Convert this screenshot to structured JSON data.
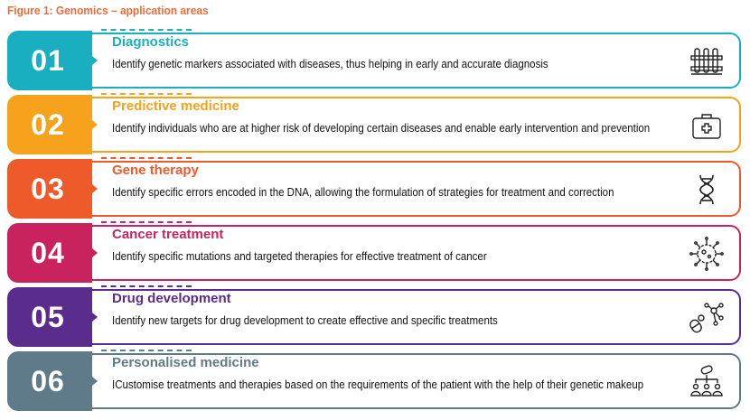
{
  "figure": {
    "title": "Figure 1: Genomics – application areas"
  },
  "rows": [
    {
      "number": "01",
      "title": "Diagnostics",
      "description": "Identify genetic markers associated with diseases, thus helping in early and accurate diagnosis",
      "color": "#1aaec1",
      "icon": "test-tubes-icon"
    },
    {
      "number": "02",
      "title": "Predictive medicine",
      "description": "Identify individuals who are at higher risk of developing certain diseases and enable early intervention and prevention",
      "color": "#f6a21c",
      "icon": "medical-kit-icon"
    },
    {
      "number": "03",
      "title": "Gene therapy",
      "description": "Identify specific errors encoded in the DNA, allowing the formulation of strategies for treatment and correction",
      "color": "#ee5a2a",
      "icon": "dna-icon"
    },
    {
      "number": "04",
      "title": "Cancer treatment",
      "description": "Identify specific mutations and targeted therapies for effective treatment of cancer",
      "color": "#c8235e",
      "icon": "cancer-cell-icon"
    },
    {
      "number": "05",
      "title": "Drug development",
      "description": "Identify new targets for drug development to create effective and specific treatments",
      "color": "#5a2c8c",
      "icon": "molecule-pill-icon"
    },
    {
      "number": "06",
      "title": "Personalised medicine",
      "description": "ICustomise treatments and therapies based on the requirements of the patient with the help of their genetic makeup",
      "color": "#5f7a88",
      "icon": "personalised-people-icon"
    }
  ]
}
